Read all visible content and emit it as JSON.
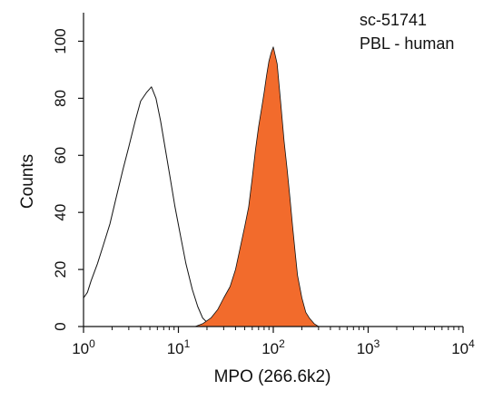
{
  "chart_data": {
    "type": "area",
    "xlabel": "MPO (266.6k2)",
    "ylabel": "Counts",
    "x_scale": "log",
    "xlim": [
      1,
      10000
    ],
    "ylim": [
      0,
      110
    ],
    "x_ticks": [
      1,
      10,
      100,
      1000,
      10000
    ],
    "x_tick_labels": [
      {
        "base": "10",
        "exp": "0"
      },
      {
        "base": "10",
        "exp": "1"
      },
      {
        "base": "10",
        "exp": "2"
      },
      {
        "base": "10",
        "exp": "3"
      },
      {
        "base": "10",
        "exp": "4"
      }
    ],
    "y_ticks": [
      0,
      20,
      40,
      60,
      80,
      100
    ],
    "annotations": [
      "sc-51741",
      "PBL - human"
    ],
    "grid": false,
    "series": [
      {
        "style": "outline",
        "color": "#111111",
        "x": [
          1.0,
          1.1,
          1.2,
          1.4,
          1.6,
          1.9,
          2.2,
          2.6,
          3.0,
          3.5,
          4.0,
          4.6,
          5.2,
          5.8,
          6.5,
          7.3,
          8.2,
          9.2,
          10.5,
          12.0,
          14.0,
          16.0,
          18.0,
          20.0,
          22.0,
          24.0
        ],
        "y": [
          10,
          12,
          16,
          22,
          28,
          36,
          45,
          55,
          63,
          72,
          79,
          82,
          84,
          80,
          72,
          62,
          52,
          42,
          32,
          22,
          13,
          7,
          3,
          1.5,
          0.5,
          0
        ]
      },
      {
        "style": "filled",
        "color": "#f26b2c",
        "x": [
          15,
          18,
          22,
          26,
          30,
          35,
          40,
          45,
          50,
          55,
          60,
          65,
          70,
          75,
          80,
          85,
          90,
          95,
          100,
          105,
          110,
          115,
          120,
          130,
          140,
          150,
          160,
          170,
          180,
          200,
          220,
          240,
          270,
          300
        ],
        "y": [
          0,
          1,
          3,
          6,
          10,
          14,
          20,
          28,
          35,
          42,
          52,
          62,
          70,
          76,
          82,
          88,
          93,
          96,
          98,
          95,
          92,
          85,
          78,
          65,
          55,
          45,
          35,
          26,
          18,
          10,
          5,
          3,
          1,
          0
        ]
      }
    ]
  }
}
